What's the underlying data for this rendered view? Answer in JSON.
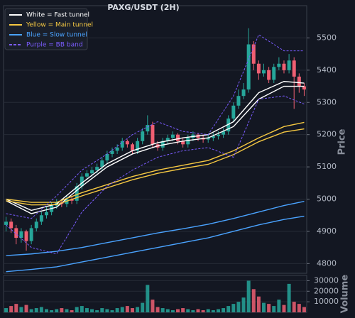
{
  "chart_data": {
    "type": "candlestick",
    "title": "PAXG/USDT (2H)",
    "ylabel": "Price",
    "y2label": "Volume",
    "up_color": "#26a69a",
    "down_color": "#ef5f72",
    "open": [
      4920,
      4930,
      4910,
      4880,
      4900,
      4870,
      4910,
      4930,
      4950,
      4960,
      4980,
      4990,
      4985,
      5000,
      4995,
      5040,
      5070,
      5080,
      5090,
      5100,
      5120,
      5140,
      5150,
      5160,
      5180,
      5170,
      5150,
      5180,
      5210,
      5230,
      5170,
      5160,
      5180,
      5190,
      5200,
      5180,
      5170,
      5190,
      5200,
      5190,
      5185,
      5190,
      5195,
      5200,
      5210,
      5250,
      5290,
      5320,
      5340,
      5480,
      5420,
      5390,
      5400,
      5370,
      5410,
      5420,
      5400,
      5430,
      5380,
      5350
    ],
    "high": [
      4945,
      4940,
      4920,
      4910,
      4905,
      4920,
      4940,
      4960,
      4975,
      4990,
      5000,
      5000,
      5010,
      5010,
      5050,
      5080,
      5090,
      5100,
      5110,
      5130,
      5150,
      5160,
      5170,
      5190,
      5185,
      5175,
      5190,
      5220,
      5260,
      5240,
      5180,
      5190,
      5200,
      5210,
      5205,
      5190,
      5200,
      5210,
      5205,
      5200,
      5200,
      5205,
      5210,
      5220,
      5260,
      5300,
      5340,
      5360,
      5530,
      5490,
      5430,
      5420,
      5410,
      5420,
      5440,
      5430,
      5450,
      5440,
      5390,
      5360
    ],
    "low": [
      4900,
      4895,
      4860,
      4865,
      4840,
      4860,
      4900,
      4920,
      4940,
      4950,
      4970,
      4975,
      4975,
      4985,
      4985,
      5030,
      5060,
      5070,
      5080,
      5090,
      5110,
      5130,
      5140,
      5150,
      5160,
      5140,
      5140,
      5170,
      5200,
      5160,
      5150,
      5150,
      5170,
      5180,
      5170,
      5160,
      5160,
      5180,
      5180,
      5175,
      5175,
      5180,
      5185,
      5190,
      5200,
      5240,
      5280,
      5310,
      5330,
      5400,
      5370,
      5380,
      5360,
      5360,
      5400,
      5390,
      5390,
      5280,
      5330,
      5320
    ],
    "close": [
      4930,
      4910,
      4880,
      4900,
      4870,
      4910,
      4930,
      4950,
      4960,
      4980,
      4990,
      4985,
      5000,
      4995,
      5040,
      5070,
      5080,
      5090,
      5100,
      5120,
      5140,
      5150,
      5160,
      5180,
      5170,
      5150,
      5180,
      5210,
      5230,
      5170,
      5160,
      5180,
      5190,
      5200,
      5180,
      5170,
      5190,
      5200,
      5190,
      5185,
      5190,
      5195,
      5200,
      5210,
      5250,
      5290,
      5320,
      5340,
      5480,
      5420,
      5390,
      5400,
      5370,
      5410,
      5420,
      5400,
      5430,
      5380,
      5350,
      5340
    ],
    "volume": [
      4000,
      6000,
      8000,
      5000,
      7000,
      3000,
      4000,
      5000,
      3000,
      2000,
      3000,
      4000,
      3000,
      2000,
      5000,
      6000,
      4000,
      3000,
      2000,
      4000,
      3000,
      2000,
      4000,
      5000,
      6000,
      4000,
      5000,
      9000,
      26000,
      12000,
      5000,
      4000,
      3000,
      2000,
      3000,
      4000,
      3000,
      2000,
      3000,
      2000,
      3000,
      2000,
      3000,
      4000,
      6000,
      8000,
      10000,
      14000,
      30000,
      22000,
      15000,
      9000,
      8000,
      6000,
      12000,
      7000,
      27000,
      10000,
      8000,
      5000
    ],
    "ylim": [
      4770,
      5600
    ],
    "yticks": [
      4800,
      4900,
      5000,
      5100,
      5200,
      5300,
      5400,
      5500
    ],
    "y2lim": [
      0,
      35000
    ],
    "y2ticks": [
      10000,
      20000,
      30000
    ],
    "lines": [
      {
        "name": "White = Fast tunnel",
        "color": "#ffffff",
        "x": [
          0,
          5,
          10,
          15,
          20,
          25,
          30,
          35,
          40,
          45,
          50,
          55,
          59
        ],
        "values": [
          5000,
          4965,
          4985,
          5050,
          5110,
          5150,
          5175,
          5190,
          5200,
          5240,
          5330,
          5365,
          5360
        ],
        "values2": [
          4995,
          4955,
          4975,
          5040,
          5100,
          5140,
          5165,
          5180,
          5190,
          5225,
          5310,
          5350,
          5350
        ]
      },
      {
        "name": "Yellow = Main tunnel",
        "color": "#f5c842",
        "x": [
          0,
          5,
          10,
          15,
          20,
          25,
          30,
          35,
          40,
          45,
          50,
          55,
          59
        ],
        "values": [
          5000,
          4990,
          4990,
          5020,
          5045,
          5070,
          5090,
          5105,
          5120,
          5150,
          5190,
          5225,
          5238
        ],
        "values2": [
          4995,
          4982,
          4983,
          5010,
          5035,
          5060,
          5080,
          5095,
          5108,
          5138,
          5178,
          5208,
          5218
        ]
      },
      {
        "name": "Blue = Slow tunnel",
        "color": "#4aa3ff",
        "x": [
          0,
          5,
          10,
          15,
          20,
          25,
          30,
          35,
          40,
          45,
          50,
          55,
          59
        ],
        "values": [
          4825,
          4830,
          4838,
          4850,
          4865,
          4880,
          4895,
          4908,
          4922,
          4940,
          4960,
          4980,
          4993
        ],
        "values2": [
          4775,
          4782,
          4790,
          4805,
          4820,
          4835,
          4850,
          4865,
          4880,
          4900,
          4920,
          4937,
          4947
        ]
      },
      {
        "name": "Purple = BB band",
        "color": "#7b5cff",
        "dashed": true,
        "x": [
          0,
          5,
          10,
          15,
          20,
          25,
          30,
          35,
          40,
          45,
          50,
          55,
          59
        ],
        "values": [
          4955,
          4940,
          5010,
          5090,
          5140,
          5200,
          5240,
          5210,
          5200,
          5320,
          5510,
          5460,
          5460
        ],
        "values2": [
          4920,
          4850,
          4830,
          4960,
          5040,
          5090,
          5130,
          5150,
          5160,
          5130,
          5310,
          5320,
          5295
        ]
      }
    ],
    "grid": true,
    "legend": "upper left"
  }
}
